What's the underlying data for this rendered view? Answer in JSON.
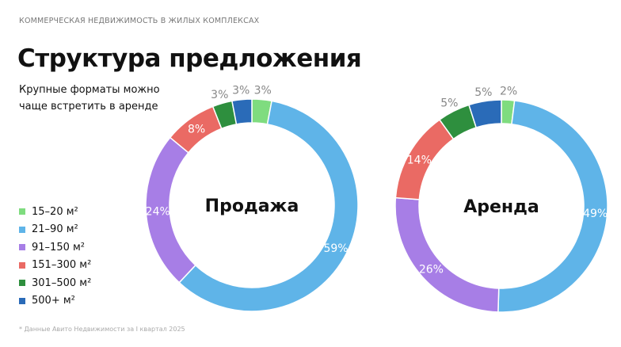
{
  "header": {
    "kicker": "КОММЕРЧЕСКАЯ НЕДВИЖИМОСТЬ В ЖИЛЫХ КОМПЛЕКСАХ",
    "title": "Структура предложения",
    "subtitle": "Крупные форматы можно чаще встретить в аренде"
  },
  "footnote": "* Данные Авито Недвижимости за I квартал 2025",
  "chart_data": [
    {
      "type": "pie",
      "title": "Продажа",
      "categories": [
        "15–20 м²",
        "21–90 м²",
        "91–150 м²",
        "151–300 м²",
        "301–500 м²",
        "500+ м²"
      ],
      "values": [
        3,
        59,
        24,
        8,
        3,
        3
      ],
      "labels": [
        "3%",
        "59%",
        "24%",
        "8%",
        "3%",
        "3%"
      ]
    },
    {
      "type": "pie",
      "title": "Аренда",
      "categories": [
        "15–20 м²",
        "21–90 м²",
        "91–150 м²",
        "151–300 м²",
        "301–500 м²",
        "500+ м²"
      ],
      "values": [
        2,
        49,
        26,
        14,
        5,
        5
      ],
      "labels": [
        "2%",
        "49%",
        "26%",
        "14%",
        "5%",
        "5%"
      ]
    }
  ],
  "legend": [
    {
      "label": "15–20 м²",
      "color": "#7fdc7f"
    },
    {
      "label": "21–90 м²",
      "color": "#5fb4e8"
    },
    {
      "label": "91–150 м²",
      "color": "#a77ee6"
    },
    {
      "label": "151–300 м²",
      "color": "#ea6a64"
    },
    {
      "label": "301–500 м²",
      "color": "#2e8f3e"
    },
    {
      "label": "500+ м²",
      "color": "#2a6bb8"
    }
  ]
}
